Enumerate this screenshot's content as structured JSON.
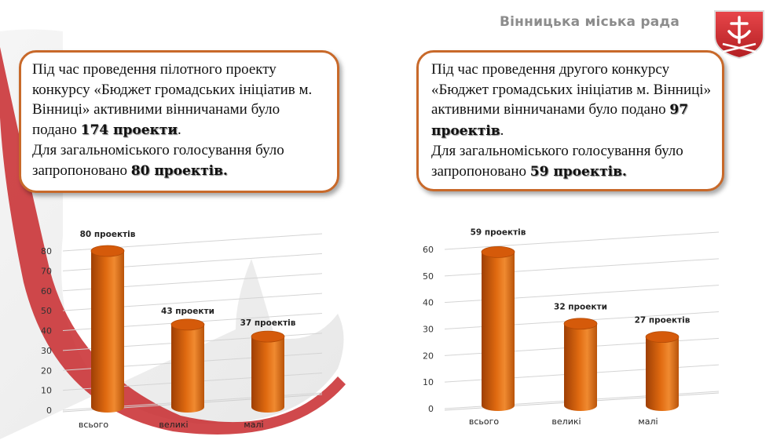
{
  "header": {
    "organization": "Вінницька міська рада"
  },
  "box1": {
    "line1": "Під час проведення пілотного проекту конкурсу «Бюджет громадських ініціатив м. Вінниці» активними вінничанами було подано ",
    "bold1": "174 проекти",
    "line1_end": ".",
    "line2": "Для загальноміського голосування було запропоновано ",
    "bold2": "80 проектів."
  },
  "box2": {
    "line1": "Під час проведення другого конкурсу «Бюджет громадських ініціатив м. Вінниці» активними вінничанами було подано ",
    "bold1": "97 проектів",
    "line1_end": ".",
    "line2": "Для загальноміського голосування було запропоновано ",
    "bold2": "59 проектів."
  },
  "colors": {
    "bar": "#e06a10",
    "border": "#c8692a"
  },
  "chart_data": [
    {
      "type": "bar",
      "categories": [
        "всього",
        "великі",
        "малі"
      ],
      "values": [
        80,
        43,
        37
      ],
      "data_labels": [
        "80 проектів",
        "43  проекти",
        "37 проектів"
      ],
      "yticks": [
        0,
        10,
        20,
        30,
        40,
        50,
        60,
        70,
        80
      ],
      "ylim": [
        0,
        80
      ],
      "grid": true
    },
    {
      "type": "bar",
      "categories": [
        "всього",
        "великі",
        "малі"
      ],
      "values": [
        59,
        32,
        27
      ],
      "data_labels": [
        "59 проектів",
        "32 проекти",
        "27 проектів"
      ],
      "yticks": [
        0,
        10,
        20,
        30,
        40,
        50,
        60
      ],
      "ylim": [
        0,
        60
      ],
      "grid": true
    }
  ]
}
